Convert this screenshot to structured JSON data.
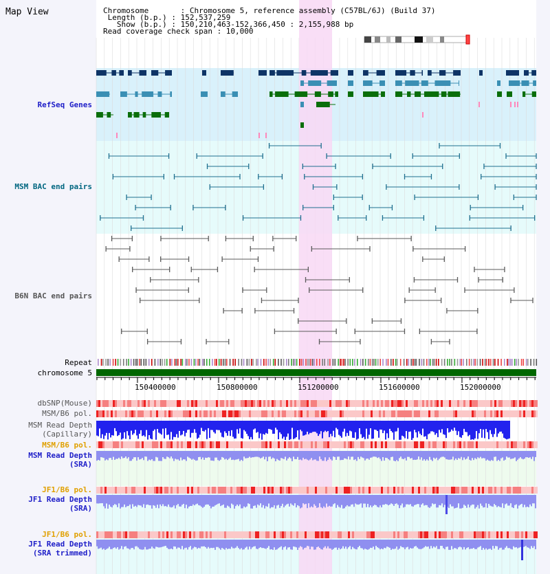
{
  "panel": {
    "title": "Map View"
  },
  "header": {
    "chromosome": "Chromosome       : Chromosome 5, reference assembly (C57BL/6J) (Build 37)",
    "length": " Length (b.p.) : 152,537,259",
    "show": "   Show (b.p.) : 150,210,463-152,366,450 : 2,155,988 bp",
    "coverage": "Read coverage check span : 10,000"
  },
  "tracks": {
    "refseq": "RefSeq Genes",
    "msm_bac": "MSM BAC end pairs",
    "b6n_bac": "B6N BAC end pairs",
    "repeat": "Repeat",
    "chromosome": "chromosome 5",
    "dbsnp": "dbSNP(Mouse)",
    "msm_b6_pol_1": "MSM/B6 pol.",
    "msm_depth_cap_1": "MSM Read Depth",
    "msm_depth_cap_2": "(Capillary)",
    "msm_b6_pol_2": "MSM/B6 pol.",
    "msm_depth_sra_1": "MSM Read Depth",
    "msm_depth_sra_2": "(SRA)",
    "jf1_b6_pol_1": "JF1/B6 pol.",
    "jf1_depth_sra_1": "JF1 Read Depth",
    "jf1_depth_sra_2": "(SRA)",
    "jf1_b6_pol_2": "JF1/B6 pol.",
    "jf1_depth_trim_1": "JF1 Read Depth",
    "jf1_depth_trim_2": "(SRA trimmed)"
  },
  "ruler": {
    "ticks": [
      "150400000",
      "150800000",
      "151200000",
      "151600000",
      "152000000"
    ]
  },
  "colors": {
    "refseq_bg": "#d9f1fb",
    "bac_bg": "#e6fbfb",
    "highlight": "#f8d8f4",
    "chromosome_bar": "#006600",
    "depth_blue": "#2222ee",
    "depth_violet": "#8f8ff0",
    "label_blue": "#1e1ec8",
    "label_orange": "#e0a000",
    "label_teal": "#006680"
  }
}
